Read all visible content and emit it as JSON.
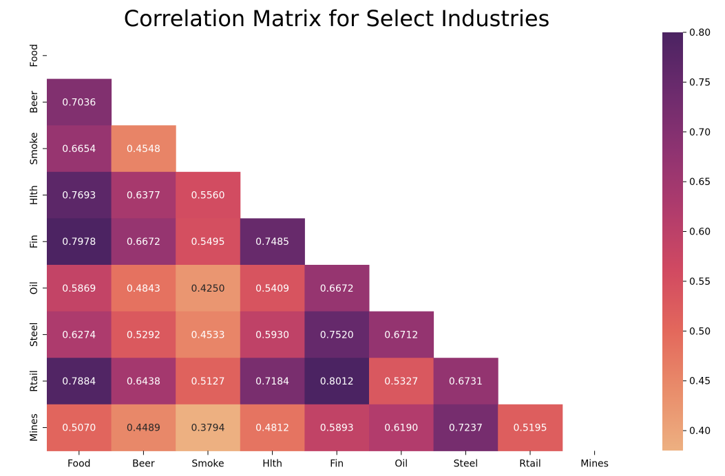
{
  "chart_data": {
    "type": "heatmap",
    "title": "Correlation Matrix for Select Industries",
    "xlabel": "",
    "ylabel": "",
    "labels": [
      "Food",
      "Beer",
      "Smoke",
      "Hlth",
      "Fin",
      "Oil",
      "Steel",
      "Rtail",
      "Mines"
    ],
    "mask": "upper-triangle-including-diagonal",
    "matrix": [
      [],
      [
        0.7036
      ],
      [
        0.6654,
        0.4548
      ],
      [
        0.7693,
        0.6377,
        0.556
      ],
      [
        0.7978,
        0.6672,
        0.5495,
        0.7485
      ],
      [
        0.5869,
        0.4843,
        0.425,
        0.5409,
        0.6672
      ],
      [
        0.6274,
        0.5292,
        0.4533,
        0.593,
        0.752,
        0.6712
      ],
      [
        0.7884,
        0.6438,
        0.5127,
        0.7184,
        0.8012,
        0.5327,
        0.6731
      ],
      [
        0.507,
        0.4489,
        0.3794,
        0.4812,
        0.5893,
        0.619,
        0.7237,
        0.5195
      ]
    ],
    "value_format": "4 decimals",
    "colormap": "flare",
    "colorbar": {
      "min": 0.38,
      "max": 0.8,
      "ticks": [
        "0.40",
        "0.45",
        "0.50",
        "0.55",
        "0.60",
        "0.65",
        "0.70",
        "0.75",
        "0.80"
      ],
      "stops": [
        "#edb081",
        "#e98d6b",
        "#e3685c",
        "#d14a61",
        "#b13c6c",
        "#8f3371",
        "#6c2b6d",
        "#4b2362"
      ]
    },
    "grid": false,
    "legend": "colorbar-right"
  }
}
